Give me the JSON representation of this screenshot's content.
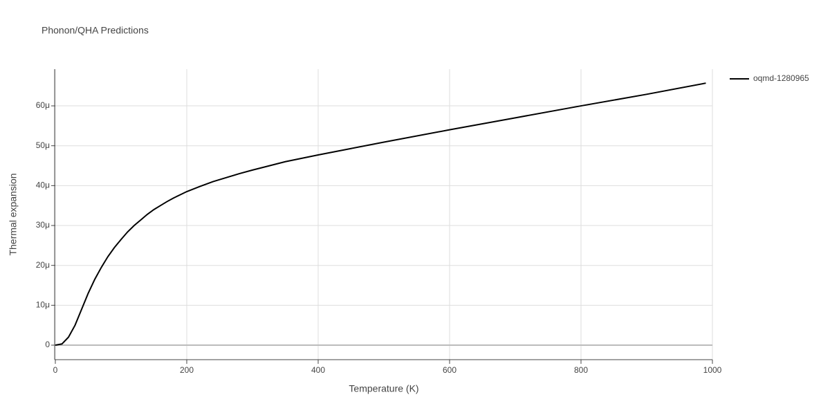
{
  "chart_data": {
    "type": "line",
    "title": "Phonon/QHA Predictions",
    "x_label": "Temperature (K)",
    "y_label": "Thermal expansion",
    "x": [
      0,
      10,
      20,
      30,
      40,
      50,
      60,
      70,
      80,
      90,
      100,
      110,
      120,
      130,
      140,
      150,
      160,
      170,
      180,
      190,
      200,
      220,
      240,
      260,
      280,
      300,
      350,
      400,
      450,
      500,
      600,
      700,
      800,
      900,
      990
    ],
    "series": [
      {
        "name": "oqmd-1280965",
        "color": "#000000",
        "values": [
          0,
          3e-07,
          2e-06,
          5e-06,
          9e-06,
          1.3e-05,
          1.65e-05,
          1.95e-05,
          2.22e-05,
          2.45e-05,
          2.65e-05,
          2.84e-05,
          3e-05,
          3.14e-05,
          3.28e-05,
          3.4e-05,
          3.5e-05,
          3.6e-05,
          3.69e-05,
          3.77e-05,
          3.85e-05,
          3.98e-05,
          4.1e-05,
          4.2e-05,
          4.3e-05,
          4.39e-05,
          4.6e-05,
          4.77e-05,
          4.93e-05,
          5.09e-05,
          5.4e-05,
          5.7e-05,
          6e-05,
          6.29e-05,
          6.57e-05
        ]
      }
    ],
    "xlim": [
      0,
      1000
    ],
    "xticks": [
      0,
      200,
      400,
      600,
      800,
      1000
    ],
    "ylim": [
      -3.64e-06,
      6.92e-05
    ],
    "yticks": [
      0,
      {
        "value": 1e-05,
        "label": "10μ"
      },
      {
        "value": 2e-05,
        "label": "20μ"
      },
      {
        "value": 3e-05,
        "label": "30μ"
      },
      {
        "value": 4e-05,
        "label": "40μ"
      },
      {
        "value": 5e-05,
        "label": "50μ"
      },
      {
        "value": 6e-05,
        "label": "60μ"
      }
    ],
    "grid": true,
    "legend": "top-right"
  }
}
